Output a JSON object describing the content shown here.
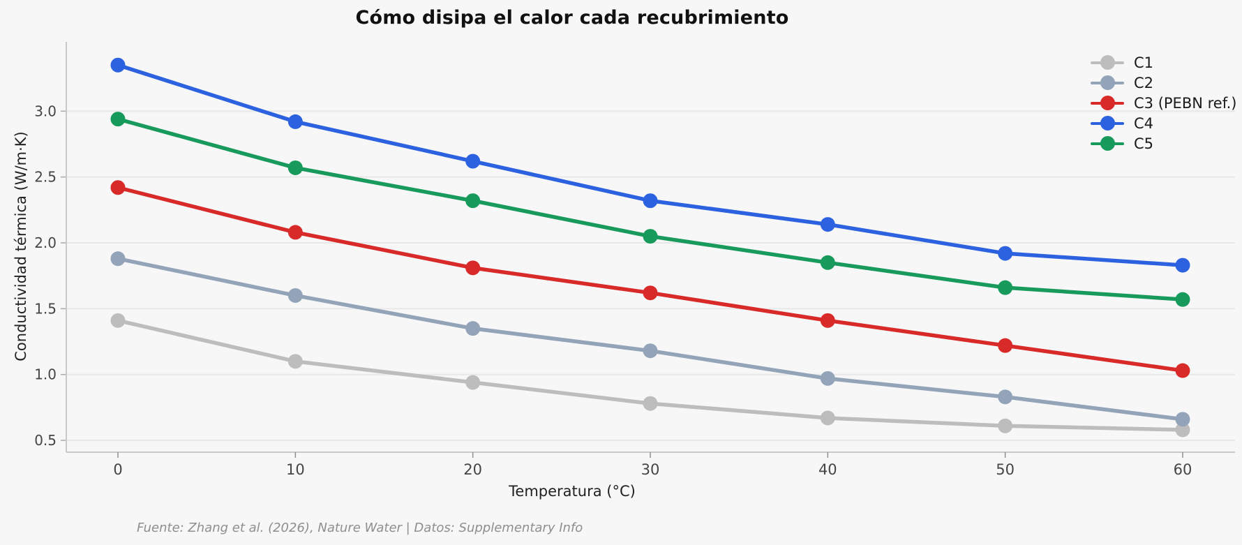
{
  "chart_data": {
    "type": "line",
    "title": "Cómo disipa el calor cada recubrimiento",
    "xlabel": "Temperatura (°C)",
    "ylabel": "Conductividad térmica (W/m·K)",
    "x": [
      0,
      10,
      20,
      30,
      40,
      50,
      60
    ],
    "xtick_labels": [
      "0",
      "10",
      "20",
      "30",
      "40",
      "50",
      "60"
    ],
    "ytick_labels": [
      "0.5",
      "1.0",
      "1.5",
      "2.0",
      "2.5",
      "3.0"
    ],
    "yticks": [
      0.5,
      1.0,
      1.5,
      2.0,
      2.5,
      3.0
    ],
    "xlim": [
      -2.9,
      63.0
    ],
    "ylim": [
      0.42,
      3.53
    ],
    "grid": "horizontal",
    "legend_position": "top-right",
    "series": [
      {
        "name": "C1",
        "color": "#bdbdbd",
        "values": [
          1.41,
          1.1,
          0.94,
          0.78,
          0.67,
          0.61,
          0.58
        ]
      },
      {
        "name": "C2",
        "color": "#93a3b8",
        "values": [
          1.88,
          1.6,
          1.35,
          1.18,
          0.97,
          0.83,
          0.66
        ]
      },
      {
        "name": "C3 (PEBN ref.)",
        "color": "#d92a2a",
        "values": [
          2.42,
          2.08,
          1.81,
          1.62,
          1.41,
          1.22,
          1.03
        ]
      },
      {
        "name": "C4",
        "color": "#2c62df",
        "values": [
          3.35,
          2.92,
          2.62,
          2.32,
          2.14,
          1.92,
          1.83
        ]
      },
      {
        "name": "C5",
        "color": "#179a5c",
        "values": [
          2.94,
          2.57,
          2.32,
          2.05,
          1.85,
          1.66,
          1.57
        ]
      }
    ],
    "source_note": "Fuente: Zhang et al. (2026), Nature Water | Datos: Supplementary Info"
  }
}
